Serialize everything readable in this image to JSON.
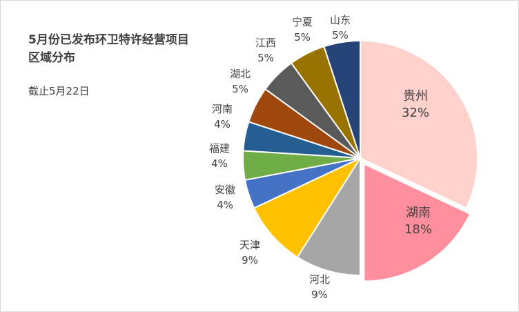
{
  "chart_data": {
    "type": "pie",
    "title_lines": [
      "5月份已发布环卫特许经营项目",
      "区域分布"
    ],
    "subtitle": "截止5月22日",
    "categories": [
      "贵州",
      "湖南",
      "河北",
      "天津",
      "安徽",
      "福建",
      "河南",
      "湖北",
      "江西",
      "宁夏",
      "山东"
    ],
    "values": [
      32,
      18,
      9,
      9,
      4,
      4,
      4,
      5,
      5,
      5,
      5
    ],
    "labels": [
      "32%",
      "18%",
      "9%",
      "9%",
      "4%",
      "4%",
      "4%",
      "5%",
      "5%",
      "5%",
      "5%"
    ],
    "colors": [
      "#FFD1CC",
      "#FF8F9C",
      "#A6A6A6",
      "#FFC000",
      "#4472C4",
      "#70AD47",
      "#255E91",
      "#9E480E",
      "#5A5A5A",
      "#997300",
      "#264478"
    ],
    "exploded": [
      false,
      true,
      false,
      false,
      false,
      false,
      false,
      false,
      false,
      false,
      false
    ],
    "label_placement": [
      "inside",
      "inside",
      "outside",
      "outside",
      "outside",
      "outside",
      "outside",
      "outside",
      "outside",
      "outside",
      "outside"
    ]
  }
}
